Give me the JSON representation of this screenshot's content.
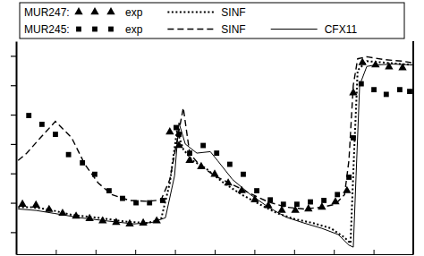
{
  "chart_data": {
    "type": "line",
    "xlim": [
      0,
      10
    ],
    "xticks": [
      0,
      1,
      2,
      3,
      4,
      5,
      6,
      7,
      8,
      9,
      10
    ],
    "ylim": [
      -0.75,
      6.5
    ],
    "yticks": [
      0,
      1,
      2,
      3,
      4,
      5,
      6
    ],
    "tick_labels": false,
    "legend": "top-left",
    "series": [
      {
        "name": "exp",
        "group": "MUR247:",
        "type": "scatter",
        "marker": "triangle",
        "color": "#000000",
        "x": [
          0.16,
          0.5,
          0.83,
          1.17,
          1.51,
          1.85,
          2.18,
          2.52,
          2.86,
          3.2,
          3.54,
          3.87,
          4.1,
          4.37,
          4.66,
          5.0,
          5.34,
          5.68,
          6.01,
          6.35,
          6.69,
          7.03,
          7.36,
          7.7,
          8.04,
          8.33,
          8.49,
          8.72,
          9.05,
          9.39,
          9.73
        ],
        "values": [
          0.95,
          0.92,
          0.77,
          0.64,
          0.54,
          0.46,
          0.38,
          0.33,
          0.28,
          0.31,
          0.38,
          3.41,
          2.95,
          2.44,
          2.23,
          1.97,
          1.67,
          1.41,
          1.1,
          0.9,
          0.74,
          0.74,
          0.79,
          0.85,
          1.03,
          1.41,
          4.74,
          5.77,
          5.69,
          5.62,
          5.59
        ]
      },
      {
        "name": "SINF",
        "group": "MUR247:",
        "type": "line",
        "line_style": "dotted",
        "color": "#000000",
        "x": [
          0.05,
          0.38,
          0.83,
          1.4,
          2.07,
          2.75,
          3.31,
          3.65,
          3.87,
          4.05,
          4.21,
          4.44,
          4.77,
          5.23,
          5.68,
          6.13,
          6.58,
          7.03,
          7.48,
          7.93,
          8.27,
          8.42,
          8.51,
          8.6,
          8.83,
          9.28,
          9.73,
          9.95
        ],
        "values": [
          0.85,
          0.85,
          0.77,
          0.59,
          0.49,
          0.36,
          0.31,
          0.44,
          1.67,
          3.46,
          2.82,
          2.44,
          2.18,
          1.67,
          1.28,
          0.95,
          0.64,
          0.44,
          0.31,
          0.13,
          -0.18,
          -0.38,
          2.69,
          5.51,
          5.82,
          5.77,
          5.72,
          5.69
        ]
      },
      {
        "name": "exp",
        "group": "MUR245:",
        "type": "scatter",
        "marker": "square",
        "color": "#000000",
        "x": [
          0.32,
          0.65,
          0.99,
          1.32,
          1.67,
          1.98,
          2.34,
          2.68,
          3.02,
          3.36,
          3.69,
          4.03,
          4.1,
          4.37,
          4.71,
          5.05,
          5.38,
          5.72,
          6.06,
          6.4,
          6.73,
          7.07,
          7.41,
          7.75,
          8.09,
          8.38,
          8.49,
          8.69,
          9.01,
          9.32,
          9.66,
          9.91
        ],
        "values": [
          3.97,
          3.67,
          3.33,
          2.64,
          2.36,
          1.97,
          1.41,
          1.15,
          1.0,
          1.0,
          1.08,
          3.56,
          3.33,
          2.69,
          2.95,
          2.69,
          2.31,
          1.97,
          1.41,
          1.1,
          0.95,
          0.95,
          1.03,
          1.08,
          1.28,
          1.87,
          3.21,
          5.05,
          4.85,
          4.69,
          4.85,
          4.79
        ]
      },
      {
        "name": "SINF",
        "group": "MUR245:",
        "type": "line",
        "line_style": "dashed",
        "color": "#000000",
        "x": [
          0.05,
          0.27,
          0.61,
          0.99,
          1.4,
          1.73,
          2.07,
          2.41,
          2.86,
          3.31,
          3.65,
          3.87,
          4.03,
          4.21,
          4.37,
          4.6,
          5.0,
          5.45,
          5.9,
          6.35,
          6.8,
          7.25,
          7.7,
          8.04,
          8.27,
          8.38,
          8.49,
          8.6,
          8.83,
          9.28,
          9.73,
          9.95
        ],
        "values": [
          2.44,
          2.69,
          3.21,
          3.77,
          3.21,
          2.31,
          1.67,
          1.28,
          1.08,
          1.05,
          1.1,
          1.79,
          2.95,
          4.23,
          2.69,
          2.31,
          1.92,
          1.62,
          1.31,
          1.03,
          0.85,
          0.79,
          0.85,
          0.95,
          1.28,
          2.44,
          5.0,
          5.9,
          5.97,
          5.87,
          5.82,
          5.77
        ]
      },
      {
        "name": "CFX11",
        "group": "MUR245:",
        "type": "line",
        "line_style": "solid",
        "color": "#000000",
        "x": [
          0.05,
          0.5,
          0.95,
          1.62,
          2.3,
          2.97,
          3.42,
          3.76,
          3.99,
          4.1,
          4.26,
          4.55,
          4.89,
          5.07,
          5.45,
          5.9,
          6.35,
          6.8,
          7.25,
          7.7,
          8.11,
          8.38,
          8.49,
          8.56,
          8.65,
          8.83,
          9.05,
          9.5,
          10.0
        ],
        "values": [
          0.79,
          0.74,
          0.64,
          0.49,
          0.38,
          0.28,
          0.33,
          0.49,
          1.92,
          3.72,
          3.0,
          2.69,
          2.74,
          2.44,
          1.79,
          1.28,
          0.85,
          0.51,
          0.31,
          0.13,
          -0.08,
          -0.44,
          -0.51,
          1.92,
          5.0,
          5.64,
          5.69,
          5.72,
          5.69
        ]
      }
    ]
  }
}
